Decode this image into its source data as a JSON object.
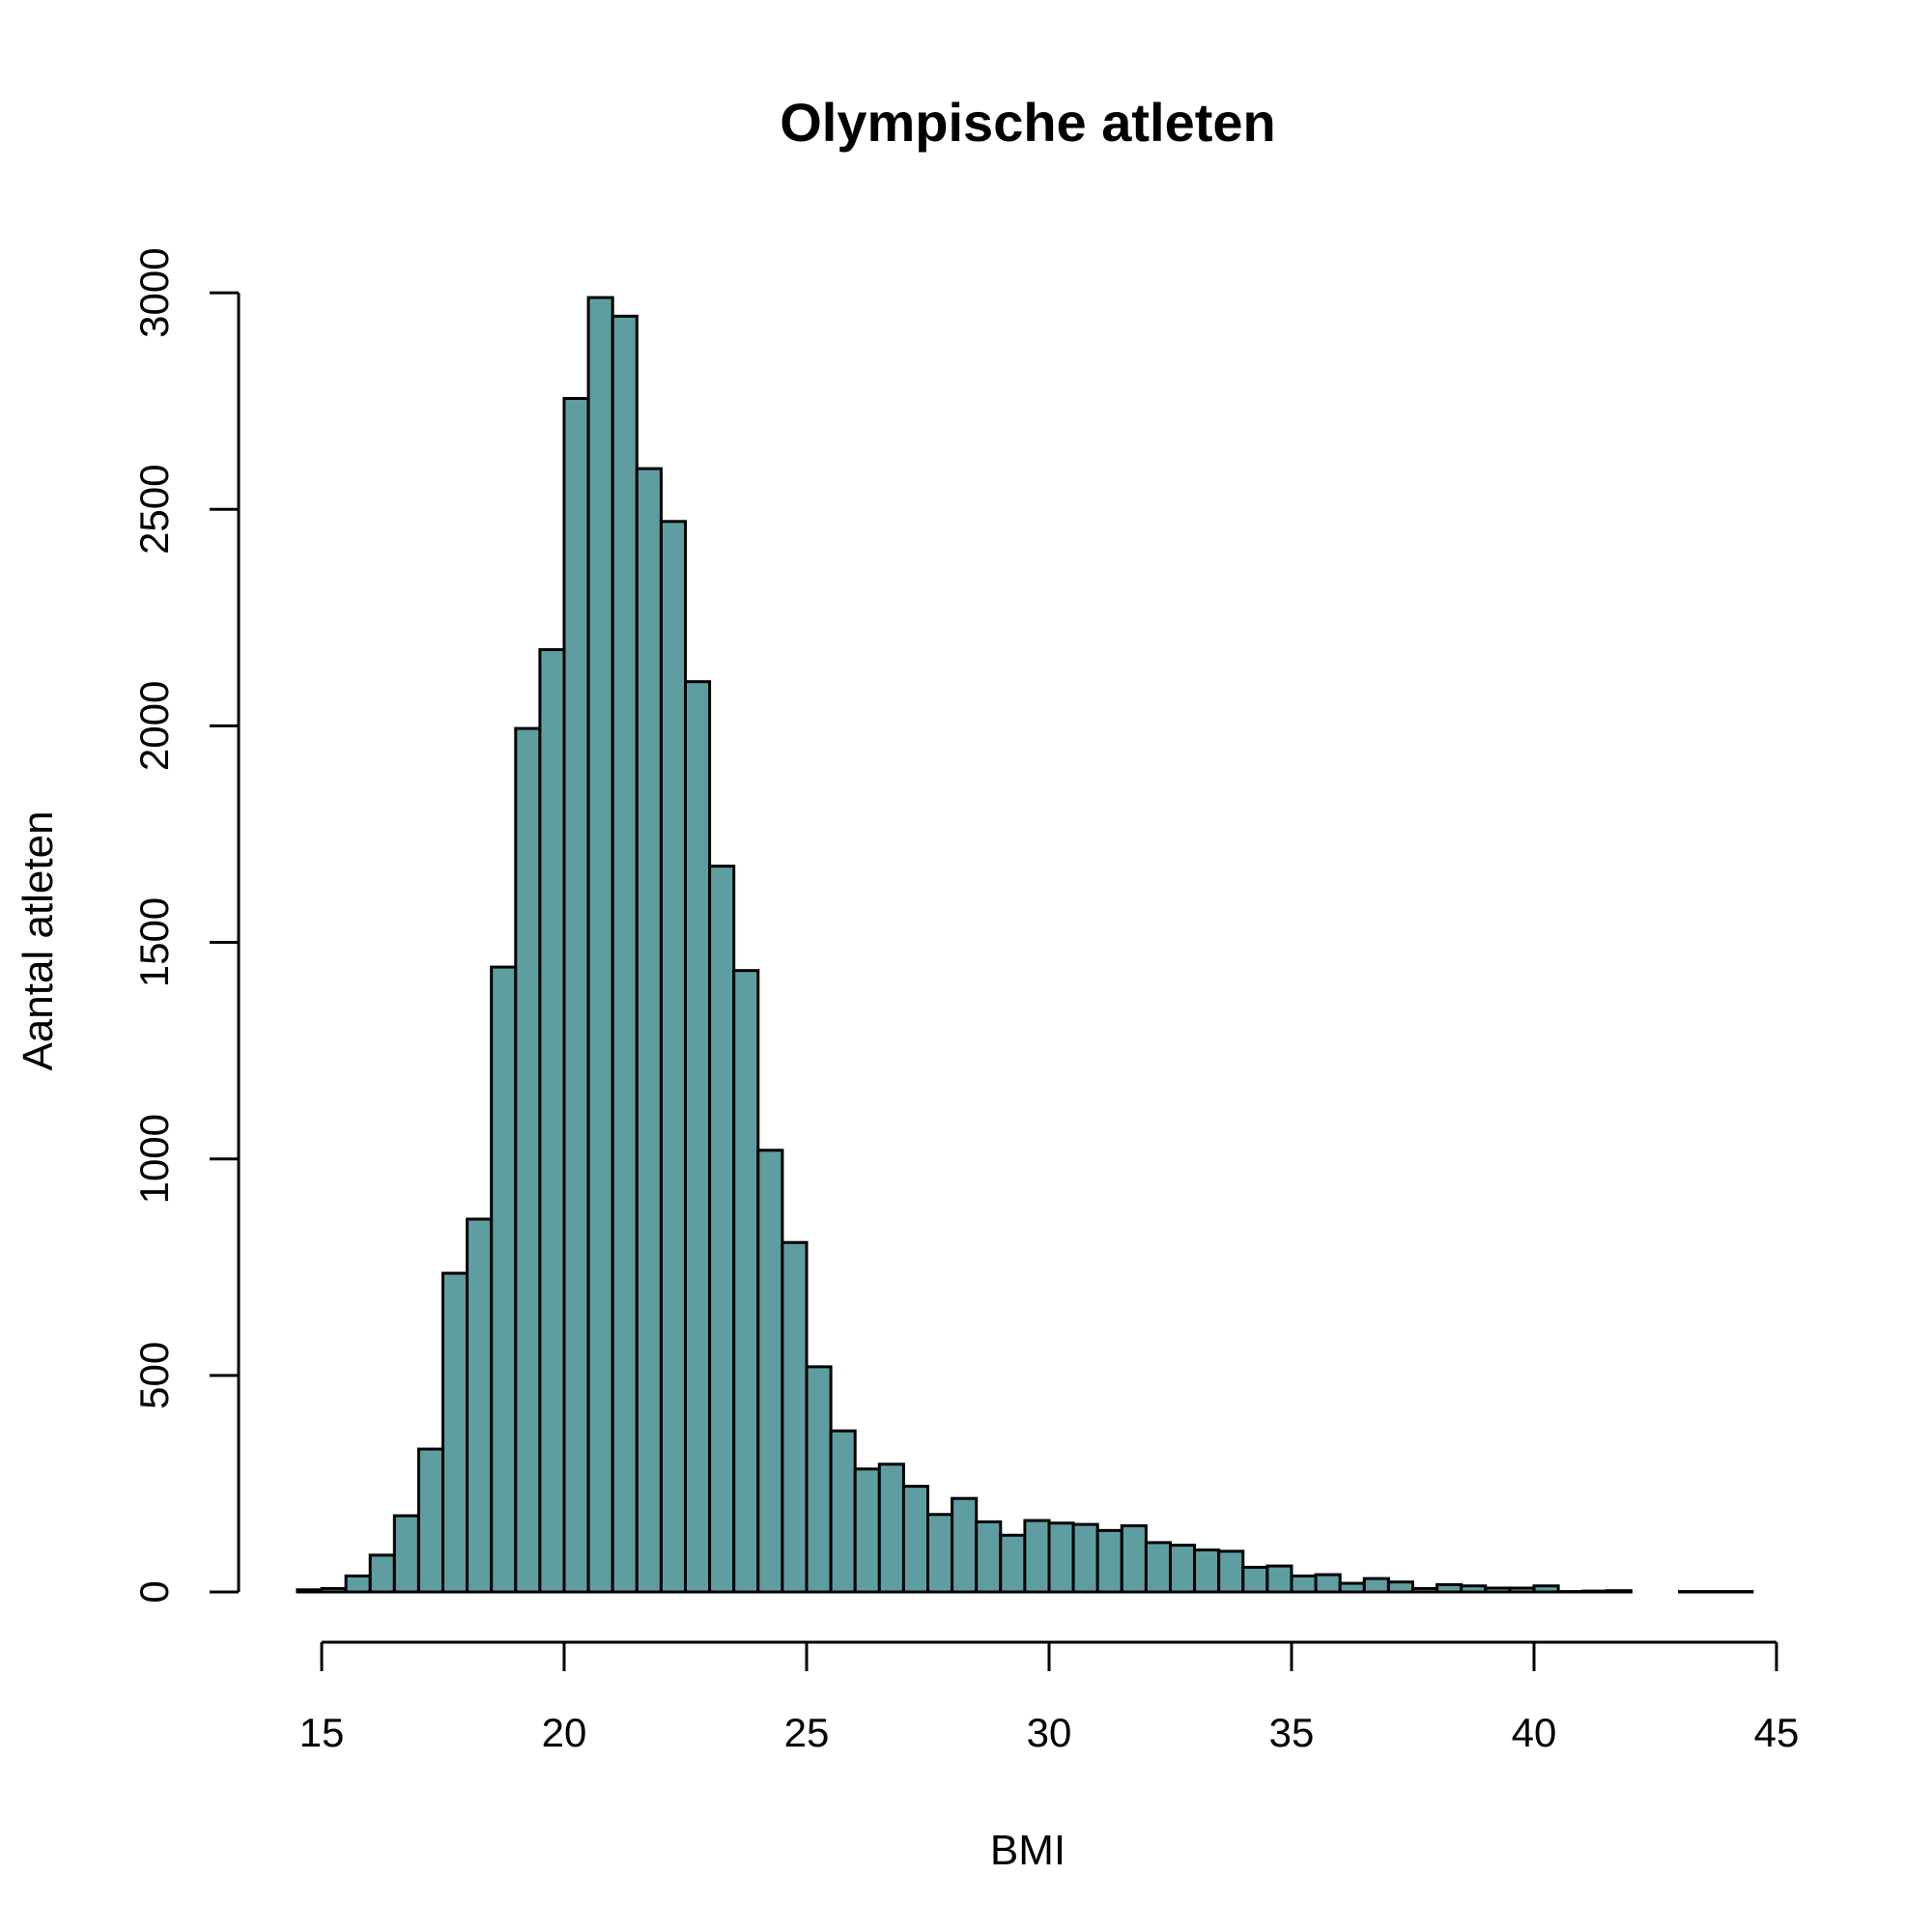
{
  "chart_data": {
    "type": "bar",
    "subtype": "histogram",
    "title": "Olympische atleten",
    "xlabel": "BMI",
    "ylabel": "Aantal atleten",
    "bar_color": "#5F9EA0",
    "bar_outline": "#000000",
    "bin_width": 0.5,
    "bin_start": 14.5,
    "xlim": [
      15,
      45
    ],
    "ylim": [
      0,
      3000
    ],
    "xticks": [
      "15",
      "20",
      "25",
      "30",
      "35",
      "40",
      "45"
    ],
    "yticks": [
      "0",
      "500",
      "1000",
      "1500",
      "2000",
      "2500",
      "3000"
    ],
    "grid": false,
    "values": [
      5,
      8,
      37,
      85,
      176,
      330,
      736,
      861,
      1443,
      1994,
      2176,
      2756,
      2989,
      2946,
      2594,
      2472,
      2102,
      1676,
      1435,
      1020,
      807,
      520,
      372,
      284,
      295,
      244,
      179,
      216,
      162,
      131,
      165,
      159,
      156,
      142,
      153,
      114,
      108,
      97,
      94,
      57,
      60,
      37,
      40,
      20,
      31,
      23,
      8,
      17,
      14,
      9,
      9,
      14,
      1,
      2,
      3,
      0,
      0,
      1,
      1,
      1
    ]
  }
}
